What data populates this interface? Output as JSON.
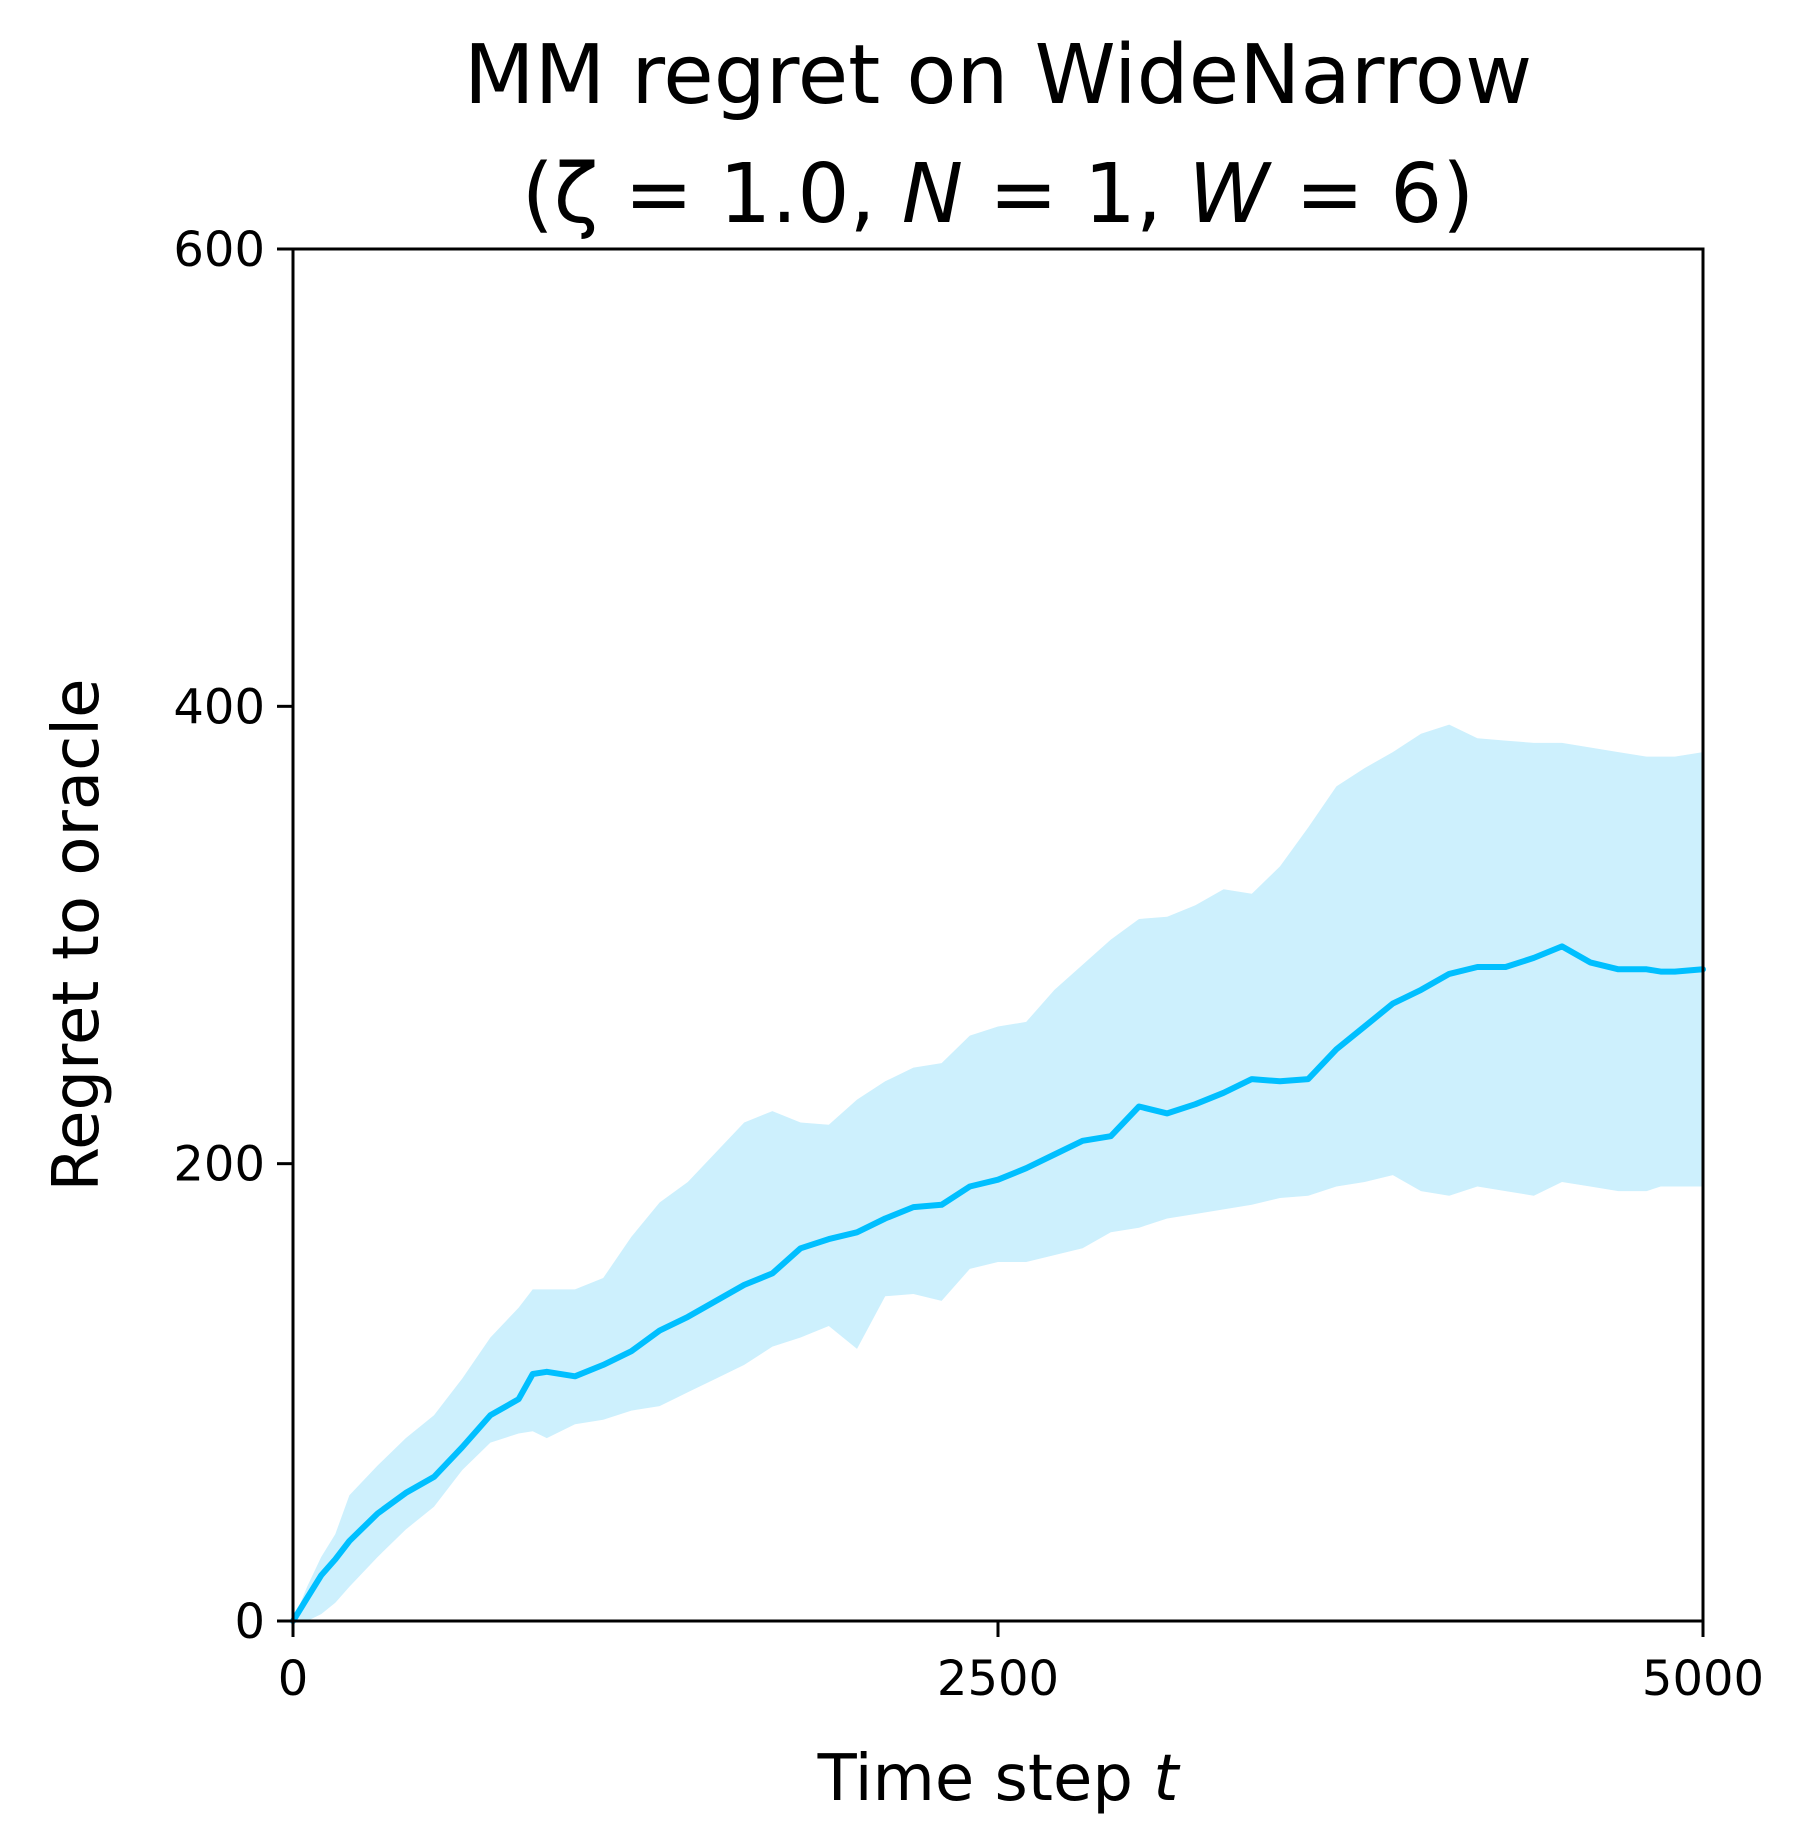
{
  "chart_data": {
    "type": "line",
    "title_line1": "MM regret on WideNarrow",
    "title_line2": [
      "(ζ = 1.0, ",
      "N",
      " = 1, ",
      "W",
      " = 6)"
    ],
    "xlabel": [
      "Time step ",
      "t"
    ],
    "ylabel": "Regret to oracle",
    "xlim": [
      0,
      5000
    ],
    "ylim": [
      0,
      600
    ],
    "xticks": [
      0,
      2500,
      5000
    ],
    "xtick_labels": [
      "0",
      "2500",
      "5000"
    ],
    "yticks": [
      0,
      200,
      400,
      600
    ],
    "ytick_labels": [
      "0",
      "200",
      "400",
      "600"
    ],
    "grid": false,
    "colors": {
      "line": "#00bfff",
      "band": "#cdf0fd",
      "axes": "#000000"
    },
    "series": [
      {
        "x": [
          0,
          50,
          100,
          150,
          200,
          300,
          400,
          500,
          600,
          700,
          800,
          850,
          900,
          1000,
          1100,
          1200,
          1300,
          1400,
          1500,
          1600,
          1700,
          1800,
          1900,
          2000,
          2100,
          2200,
          2300,
          2400,
          2500,
          2600,
          2700,
          2800,
          2900,
          3000,
          3100,
          3200,
          3300,
          3400,
          3500,
          3600,
          3700,
          3800,
          3900,
          4000,
          4100,
          4200,
          4300,
          4400,
          4500,
          4600,
          4700,
          4800,
          4850,
          4900,
          5000
        ],
        "values": [
          0,
          10,
          20,
          27,
          35,
          47,
          56,
          63,
          76,
          90,
          97,
          108,
          109,
          107,
          112,
          118,
          127,
          133,
          140,
          147,
          152,
          163,
          167,
          170,
          176,
          181,
          182,
          190,
          193,
          198,
          204,
          210,
          212,
          225,
          222,
          226,
          231,
          237,
          236,
          237,
          250,
          260,
          270,
          276,
          283,
          286,
          286,
          290,
          295,
          288,
          285,
          285,
          284,
          284,
          285
        ],
        "band_upper": [
          0,
          15,
          28,
          38,
          55,
          68,
          80,
          90,
          106,
          124,
          137,
          145,
          145,
          145,
          150,
          168,
          183,
          192,
          205,
          218,
          223,
          218,
          217,
          228,
          236,
          242,
          244,
          256,
          260,
          262,
          276,
          287,
          298,
          307,
          308,
          313,
          320,
          318,
          330,
          347,
          365,
          373,
          380,
          388,
          392,
          386,
          385,
          384,
          384,
          382,
          380,
          378,
          378,
          378,
          380
        ],
        "band_lower": [
          0,
          0,
          3,
          8,
          15,
          28,
          40,
          50,
          66,
          78,
          82,
          83,
          80,
          86,
          88,
          92,
          94,
          100,
          106,
          112,
          120,
          124,
          129,
          119,
          142,
          143,
          140,
          154,
          157,
          157,
          160,
          163,
          170,
          172,
          176,
          178,
          180,
          182,
          185,
          186,
          190,
          192,
          195,
          188,
          186,
          190,
          188,
          186,
          192,
          190,
          188,
          188,
          190,
          190,
          190
        ]
      }
    ]
  }
}
